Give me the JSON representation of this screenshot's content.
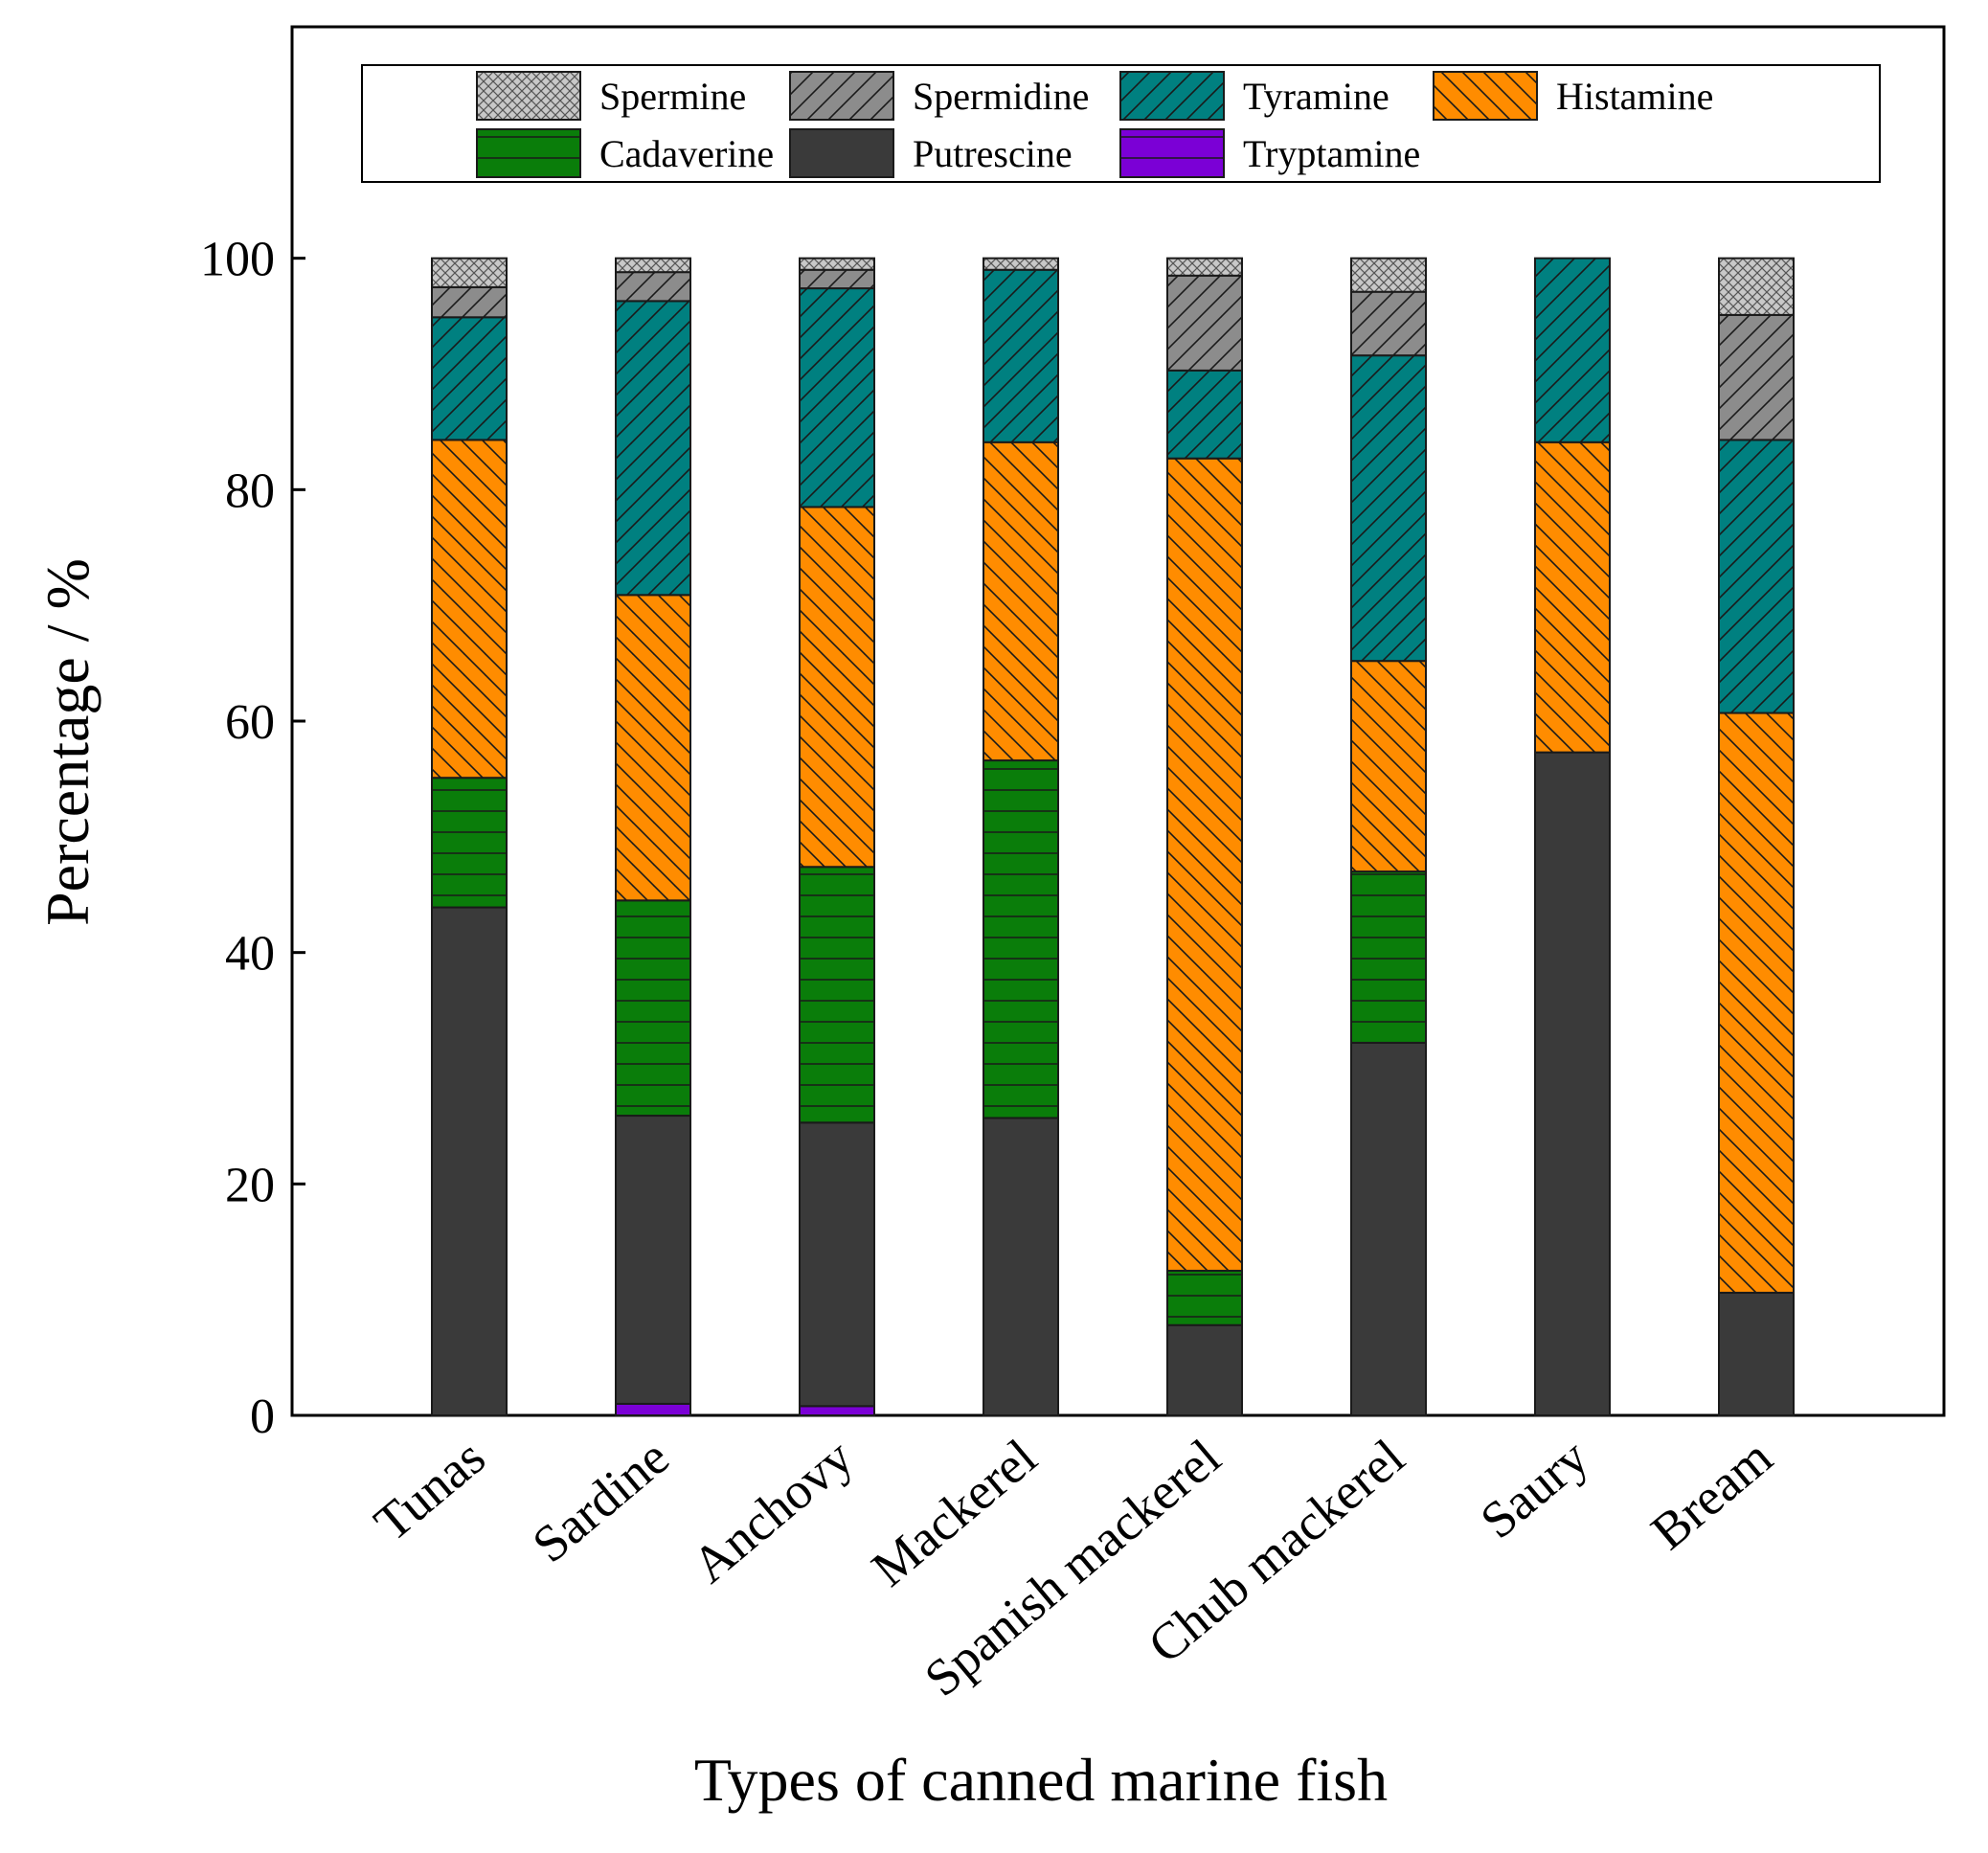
{
  "chart_data": {
    "type": "bar",
    "stacked": true,
    "title": "",
    "xlabel": "Types of canned marine fish",
    "ylabel": "Percentage / %",
    "ylim": [
      0,
      120
    ],
    "yticks": [
      0,
      20,
      40,
      60,
      80,
      100
    ],
    "grid": false,
    "legend_position": "top",
    "categories": [
      "Tunas",
      "Sardine",
      "Anchovy",
      "Mackerel",
      "Spanish mackerel",
      "Chub mackerel",
      "Saury",
      "Bream"
    ],
    "series": [
      {
        "name": "Tryptamine",
        "color": "#7b00d6",
        "pattern": "hlines",
        "values": [
          0,
          1.0,
          0.8,
          0,
          0,
          0,
          0,
          0
        ]
      },
      {
        "name": "Putrescine",
        "color": "#3a3a3a",
        "pattern": "solid",
        "values": [
          43.9,
          24.9,
          24.5,
          25.7,
          7.8,
          32.2,
          57.3,
          10.6
        ]
      },
      {
        "name": "Cadaverine",
        "color": "#0a7d0a",
        "pattern": "hlines",
        "values": [
          11.2,
          18.6,
          22.1,
          30.9,
          4.7,
          14.8,
          0,
          0
        ]
      },
      {
        "name": "Histamine",
        "color": "#ff8c00",
        "pattern": "backdiag",
        "values": [
          29.2,
          26.4,
          31.1,
          27.5,
          70.2,
          18.2,
          26.8,
          50.1
        ]
      },
      {
        "name": "Tyramine",
        "color": "#008080",
        "pattern": "fwddiag",
        "values": [
          10.6,
          25.4,
          18.9,
          14.9,
          7.6,
          26.4,
          15.9,
          23.6
        ]
      },
      {
        "name": "Spermidine",
        "color": "#8c8c8c",
        "pattern": "fwddiag",
        "values": [
          2.6,
          2.5,
          1.6,
          0,
          8.2,
          5.5,
          0,
          10.8
        ]
      },
      {
        "name": "Spermine",
        "color": "#c8c8c8",
        "pattern": "cross",
        "values": [
          2.5,
          1.2,
          1.0,
          1.0,
          1.5,
          2.9,
          0,
          4.9
        ]
      }
    ],
    "legend_order": [
      "Spermine",
      "Spermidine",
      "Tyramine",
      "Histamine",
      "Cadaverine",
      "Putrescine",
      "Tryptamine"
    ]
  }
}
